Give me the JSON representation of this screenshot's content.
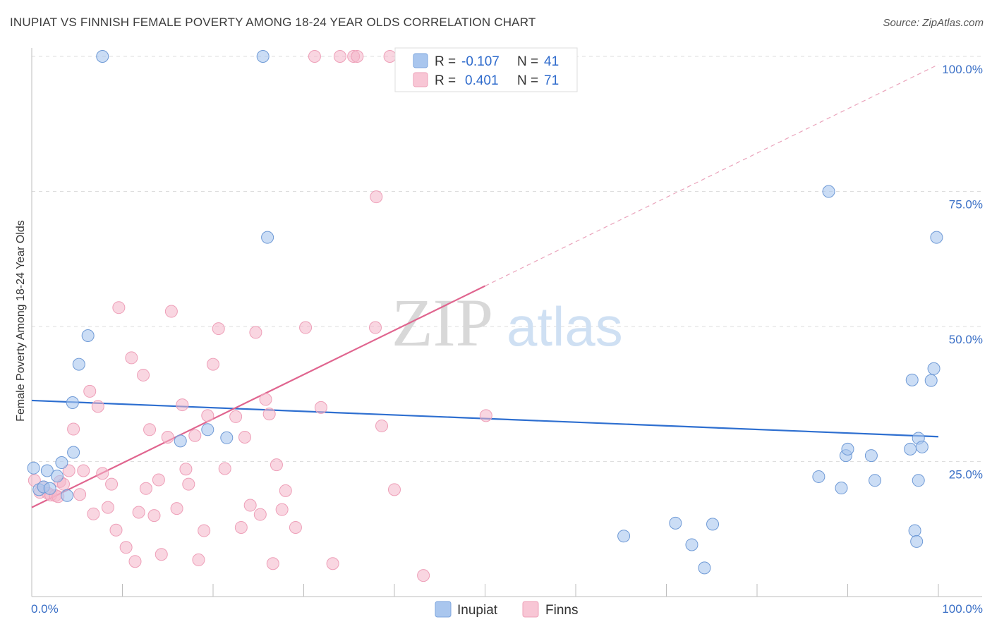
{
  "title": "INUPIAT VS FINNISH FEMALE POVERTY AMONG 18-24 YEAR OLDS CORRELATION CHART",
  "source": "Source: ZipAtlas.com",
  "watermark": {
    "zip": "ZIP",
    "atlas": "atlas"
  },
  "chart_data": {
    "type": "scatter",
    "ylabel": "Female Poverty Among 18-24 Year Olds",
    "x_tick_labels": [
      "0.0%",
      "100.0%"
    ],
    "y_tick_labels": [
      "25.0%",
      "50.0%",
      "75.0%",
      "100.0%"
    ],
    "xlim": [
      0,
      100
    ],
    "ylim": [
      0,
      100
    ],
    "grid": "horizontal dashed",
    "legend": {
      "position": "top-center",
      "entries": [
        {
          "label": "R = ",
          "r": "-0.107",
          "n_label": "N = ",
          "n": "41"
        },
        {
          "label": "R = ",
          "r": "0.401",
          "n_label": "N = ",
          "n": "71"
        }
      ]
    },
    "bottom_legend": [
      "Inupiat",
      "Finns"
    ],
    "colors": {
      "inupiat": "#a9c6ee",
      "inupiat_line": "#2e6fd0",
      "finns": "#f4b5c8",
      "finns_line": "#e0658f"
    },
    "series": [
      {
        "name": "Inupiat",
        "trend": {
          "x": [
            0,
            100
          ],
          "y": [
            36.3,
            29.6
          ]
        },
        "points": [
          [
            0.2,
            23.8
          ],
          [
            0.8,
            19.8
          ],
          [
            1.3,
            20.3
          ],
          [
            1.7,
            23.3
          ],
          [
            2.0,
            20.0
          ],
          [
            2.8,
            22.3
          ],
          [
            3.3,
            24.8
          ],
          [
            3.9,
            18.7
          ],
          [
            4.6,
            26.7
          ],
          [
            4.5,
            35.9
          ],
          [
            5.2,
            43.0
          ],
          [
            6.2,
            48.3
          ],
          [
            7.8,
            100
          ],
          [
            16.4,
            28.8
          ],
          [
            19.4,
            30.9
          ],
          [
            21.5,
            29.4
          ],
          [
            25.5,
            100
          ],
          [
            26.0,
            66.5
          ],
          [
            47.0,
            100
          ],
          [
            65.3,
            11.2
          ],
          [
            71.0,
            13.6
          ],
          [
            72.8,
            9.6
          ],
          [
            75.1,
            13.4
          ],
          [
            89.8,
            26.1
          ],
          [
            92.6,
            26.1
          ],
          [
            74.2,
            5.3
          ],
          [
            86.8,
            22.2
          ],
          [
            89.3,
            20.1
          ],
          [
            93.0,
            21.5
          ],
          [
            96.9,
            27.3
          ],
          [
            97.8,
            21.5
          ],
          [
            97.4,
            12.2
          ],
          [
            97.6,
            10.2
          ],
          [
            97.1,
            40.1
          ],
          [
            97.8,
            29.3
          ],
          [
            98.2,
            27.7
          ],
          [
            99.2,
            40.0
          ],
          [
            99.5,
            42.2
          ],
          [
            87.9,
            75.0
          ],
          [
            99.8,
            66.5
          ],
          [
            90.0,
            27.3
          ]
        ]
      },
      {
        "name": "Finns",
        "trend": {
          "x": [
            0,
            50
          ],
          "y": [
            16.5,
            57.5
          ]
        },
        "trend_extension": {
          "x": [
            50,
            100
          ],
          "y": [
            57.5,
            98.5
          ]
        },
        "points": [
          [
            0.3,
            21.5
          ],
          [
            0.9,
            19.3
          ],
          [
            1.3,
            20.3
          ],
          [
            1.8,
            19.1
          ],
          [
            2.1,
            18.8
          ],
          [
            2.6,
            18.7
          ],
          [
            2.9,
            18.5
          ],
          [
            3.1,
            21.3
          ],
          [
            3.5,
            20.8
          ],
          [
            4.1,
            23.3
          ],
          [
            4.6,
            31.0
          ],
          [
            5.3,
            18.9
          ],
          [
            5.7,
            23.3
          ],
          [
            6.4,
            38.0
          ],
          [
            6.8,
            15.3
          ],
          [
            7.3,
            35.2
          ],
          [
            7.8,
            22.8
          ],
          [
            8.4,
            16.5
          ],
          [
            8.8,
            20.8
          ],
          [
            9.3,
            12.3
          ],
          [
            9.6,
            53.5
          ],
          [
            10.4,
            9.1
          ],
          [
            11.0,
            44.2
          ],
          [
            11.4,
            6.5
          ],
          [
            11.8,
            15.6
          ],
          [
            12.3,
            41.0
          ],
          [
            12.6,
            20.0
          ],
          [
            13.0,
            30.9
          ],
          [
            13.5,
            15.0
          ],
          [
            14.0,
            21.6
          ],
          [
            14.3,
            7.8
          ],
          [
            15.0,
            29.5
          ],
          [
            15.4,
            52.8
          ],
          [
            16.0,
            16.3
          ],
          [
            16.6,
            35.5
          ],
          [
            17.0,
            23.6
          ],
          [
            17.3,
            20.8
          ],
          [
            18.0,
            29.8
          ],
          [
            18.4,
            6.8
          ],
          [
            19.0,
            12.2
          ],
          [
            19.4,
            33.5
          ],
          [
            20.0,
            43.0
          ],
          [
            20.6,
            49.6
          ],
          [
            21.3,
            23.7
          ],
          [
            22.5,
            33.3
          ],
          [
            23.1,
            12.8
          ],
          [
            23.5,
            29.5
          ],
          [
            24.1,
            16.9
          ],
          [
            24.7,
            48.9
          ],
          [
            25.2,
            15.2
          ],
          [
            25.8,
            36.5
          ],
          [
            26.2,
            33.8
          ],
          [
            26.6,
            6.1
          ],
          [
            27.0,
            24.4
          ],
          [
            27.6,
            16.1
          ],
          [
            28.0,
            19.6
          ],
          [
            29.1,
            12.8
          ],
          [
            30.2,
            49.8
          ],
          [
            31.2,
            100
          ],
          [
            31.9,
            35.0
          ],
          [
            33.2,
            6.1
          ],
          [
            34.0,
            100
          ],
          [
            35.5,
            100
          ],
          [
            35.9,
            100
          ],
          [
            37.9,
            49.8
          ],
          [
            38.0,
            74.0
          ],
          [
            38.6,
            31.6
          ],
          [
            39.5,
            100
          ],
          [
            40.0,
            19.8
          ],
          [
            43.2,
            3.9
          ],
          [
            50.1,
            33.5
          ]
        ]
      }
    ]
  }
}
